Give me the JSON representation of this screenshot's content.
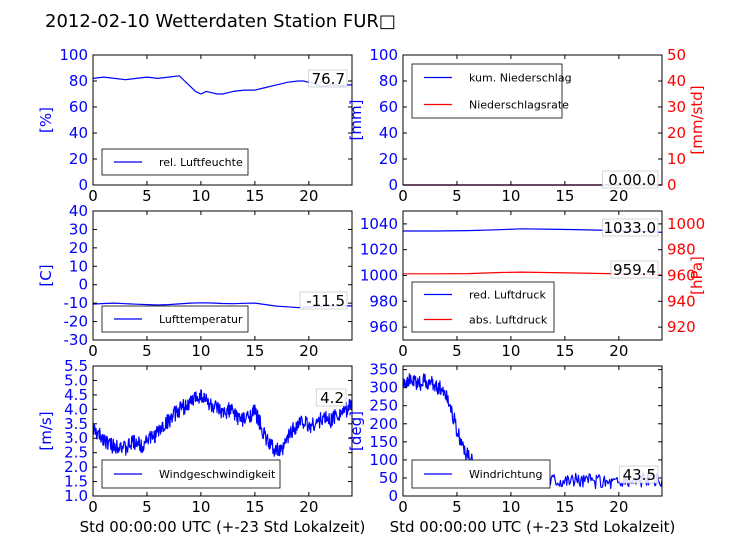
{
  "title": "2012-02-10 Wetterdaten Station FUR□",
  "colors": {
    "primary": "#0000ff",
    "secondary": "#ff0000",
    "frame": "#000000"
  },
  "chart_data": [
    {
      "id": "humidity",
      "type": "line",
      "xlim": [
        0,
        24
      ],
      "ylim": [
        0,
        100
      ],
      "xticks": [
        0,
        5,
        10,
        15,
        20
      ],
      "yticks": [
        0,
        20,
        40,
        60,
        80,
        100
      ],
      "ylabel": "[%]",
      "xlabel": "",
      "legend": {
        "placement": "lower-left",
        "entries": [
          {
            "label": "rel. Luftfeuchte",
            "color": "#0000ff"
          }
        ]
      },
      "annotation": "76.7",
      "series": [
        {
          "name": "rel. Luftfeuchte",
          "color": "#0000ff",
          "x": [
            0,
            1,
            2,
            3,
            4,
            5,
            6,
            7,
            8,
            8.5,
            9,
            9.5,
            10,
            10.5,
            11,
            11.5,
            12,
            12.5,
            13,
            14,
            15,
            16,
            17,
            18,
            19,
            19.5,
            20,
            20.5,
            21,
            21.5,
            22,
            22.5,
            23,
            23.5,
            24
          ],
          "y": [
            82,
            83,
            82,
            81,
            82,
            83,
            82,
            83,
            84,
            80,
            76,
            72,
            70,
            72,
            71,
            70,
            70,
            71,
            72,
            73,
            73,
            75,
            77,
            79,
            80,
            80,
            79,
            78,
            76,
            76,
            77,
            77,
            76,
            77,
            77
          ]
        }
      ]
    },
    {
      "id": "precipitation",
      "type": "line",
      "xlim": [
        0,
        24
      ],
      "ylim": [
        0,
        100
      ],
      "y2lim": [
        0,
        50
      ],
      "xticks": [
        0,
        5,
        10,
        15,
        20
      ],
      "yticks": [
        0,
        20,
        40,
        60,
        80,
        100
      ],
      "y2ticks": [
        0,
        10,
        20,
        30,
        40,
        50
      ],
      "ylabel": "[mm]",
      "y2label": "[mm/std]",
      "xlabel": "",
      "legend": {
        "placement": "top-left",
        "entries": [
          {
            "label": "kum. Niederschlag",
            "color": "#0000ff"
          },
          {
            "label": "Niederschlagsrate",
            "color": "#ff0000"
          }
        ]
      },
      "annotation": "0.00.0",
      "series": [
        {
          "name": "kum. Niederschlag",
          "color": "#0000ff",
          "axis": "y",
          "x": [
            0,
            24
          ],
          "y": [
            0,
            0
          ]
        },
        {
          "name": "Niederschlagsrate",
          "color": "#ff0000",
          "axis": "y2",
          "x": [
            0,
            24
          ],
          "y": [
            0,
            0
          ]
        }
      ]
    },
    {
      "id": "temperature",
      "type": "line",
      "xlim": [
        0,
        24
      ],
      "ylim": [
        -30,
        40
      ],
      "xticks": [
        0,
        5,
        10,
        15,
        20
      ],
      "yticks": [
        -30,
        -20,
        -10,
        0,
        10,
        20,
        30,
        40
      ],
      "ylabel": "[C]",
      "xlabel": "",
      "legend": {
        "placement": "lower-left",
        "entries": [
          {
            "label": "Lufttemperatur",
            "color": "#0000ff"
          }
        ]
      },
      "annotation": "-11.5",
      "series": [
        {
          "name": "Lufttemperatur",
          "color": "#0000ff",
          "x": [
            0,
            1,
            2,
            3,
            4,
            5,
            6,
            7,
            8,
            9,
            10,
            11,
            12,
            13,
            14,
            15,
            16,
            17,
            18,
            19,
            20,
            21,
            22,
            23,
            24
          ],
          "y": [
            -10.5,
            -10.2,
            -10.0,
            -10.3,
            -10.6,
            -10.8,
            -11.0,
            -10.8,
            -10.4,
            -10.0,
            -9.8,
            -9.9,
            -10.2,
            -10.3,
            -10.1,
            -10.0,
            -10.8,
            -11.6,
            -12.0,
            -12.4,
            -12.0,
            -11.8,
            -11.6,
            -11.5,
            -11.5
          ]
        }
      ]
    },
    {
      "id": "pressure",
      "type": "line",
      "xlim": [
        0,
        24
      ],
      "ylim": [
        950,
        1050
      ],
      "y2lim": [
        910,
        1010
      ],
      "xticks": [
        0,
        5,
        10,
        15,
        20
      ],
      "yticks": [
        960,
        980,
        1000,
        1020,
        1040
      ],
      "y2ticks": [
        920,
        940,
        960,
        980,
        1000
      ],
      "ylabel": "",
      "y2label": "[hPa]",
      "xlabel": "",
      "legend": {
        "placement": "lower-left",
        "entries": [
          {
            "label": "red. Luftdruck",
            "color": "#0000ff"
          },
          {
            "label": "abs. Luftdruck",
            "color": "#ff0000"
          }
        ]
      },
      "annotations": [
        "1033.0",
        "959.4"
      ],
      "series": [
        {
          "name": "red. Luftdruck",
          "color": "#0000ff",
          "axis": "y",
          "x": [
            0,
            3,
            6,
            9,
            11,
            13,
            16,
            19,
            22,
            24
          ],
          "y": [
            1034.5,
            1034.5,
            1034.8,
            1035.5,
            1036.2,
            1036.0,
            1035.6,
            1035.0,
            1034.3,
            1033.5
          ]
        },
        {
          "name": "abs. Luftdruck",
          "color": "#ff0000",
          "axis": "y2",
          "x": [
            0,
            3,
            6,
            9,
            11,
            13,
            16,
            19,
            22,
            24
          ],
          "y": [
            961.3,
            961.3,
            961.5,
            962.3,
            962.6,
            962.3,
            961.9,
            961.5,
            960.8,
            960.3
          ]
        }
      ]
    },
    {
      "id": "windspeed",
      "type": "line",
      "xlim": [
        0,
        24
      ],
      "ylim": [
        1.0,
        5.5
      ],
      "xticks": [
        0,
        5,
        10,
        15,
        20
      ],
      "yticks": [
        1.0,
        1.5,
        2.0,
        2.5,
        3.0,
        3.5,
        4.0,
        4.5,
        5.0,
        5.5
      ],
      "ylabel": "[m/s]",
      "xlabel": "Std 00:00:00 UTC (+-23 Std Lokalzeit)",
      "legend": {
        "placement": "lower-left",
        "entries": [
          {
            "label": "Windgeschwindigkeit",
            "color": "#0000ff"
          }
        ]
      },
      "annotation": "4.2",
      "series": [
        {
          "name": "Windgeschwindigkeit",
          "color": "#0000ff",
          "noisy": true,
          "x": [
            0,
            0.5,
            1,
            1.5,
            2,
            2.5,
            3,
            3.5,
            4,
            4.5,
            5,
            5.5,
            6,
            6.5,
            7,
            7.5,
            8,
            8.5,
            9,
            9.5,
            10,
            10.5,
            11,
            11.5,
            12,
            12.5,
            13,
            13.5,
            14,
            14.5,
            15,
            15.5,
            16,
            16.5,
            17,
            17.5,
            18,
            18.5,
            19,
            19.5,
            20,
            20.5,
            21,
            21.5,
            22,
            22.5,
            23,
            23.5,
            24
          ],
          "y": [
            3.3,
            3.1,
            3.0,
            2.8,
            2.7,
            2.8,
            2.6,
            2.8,
            2.9,
            2.7,
            3.0,
            3.0,
            3.2,
            3.4,
            3.6,
            3.8,
            4.0,
            4.1,
            4.2,
            4.4,
            4.5,
            4.3,
            4.1,
            4.0,
            3.8,
            4.0,
            3.9,
            3.7,
            3.6,
            3.8,
            3.9,
            3.5,
            3.0,
            2.7,
            2.6,
            2.5,
            3.0,
            3.3,
            3.5,
            3.6,
            3.4,
            3.5,
            3.6,
            3.7,
            3.6,
            3.8,
            3.9,
            4.0,
            4.2
          ]
        }
      ]
    },
    {
      "id": "winddirection",
      "type": "line",
      "xlim": [
        0,
        24
      ],
      "ylim": [
        0,
        360
      ],
      "xticks": [
        0,
        5,
        10,
        15,
        20
      ],
      "yticks": [
        0,
        50,
        100,
        150,
        200,
        250,
        300,
        350
      ],
      "ylabel": "[deg]",
      "xlabel": "Std 00:00:00 UTC (+-23 Std Lokalzeit)",
      "legend": {
        "placement": "lower-left",
        "entries": [
          {
            "label": "Windrichtung",
            "color": "#0000ff"
          }
        ]
      },
      "annotation": "43.5",
      "series": [
        {
          "name": "Windrichtung",
          "color": "#0000ff",
          "noisy": true,
          "x": [
            0,
            0.5,
            1,
            1.5,
            2,
            2.5,
            3,
            3.5,
            4,
            4.5,
            5,
            5.5,
            6,
            6.5,
            7,
            7.5,
            8,
            8.5,
            9,
            9.5,
            10,
            11,
            12,
            13,
            14,
            15,
            16,
            17,
            18,
            19,
            20,
            21,
            22,
            23,
            24
          ],
          "y": [
            320,
            318,
            315,
            310,
            318,
            312,
            305,
            300,
            280,
            240,
            180,
            140,
            110,
            90,
            80,
            70,
            68,
            65,
            62,
            60,
            58,
            55,
            52,
            50,
            48,
            46,
            45,
            44,
            42,
            40,
            40,
            42,
            44,
            43,
            44
          ]
        }
      ]
    }
  ]
}
